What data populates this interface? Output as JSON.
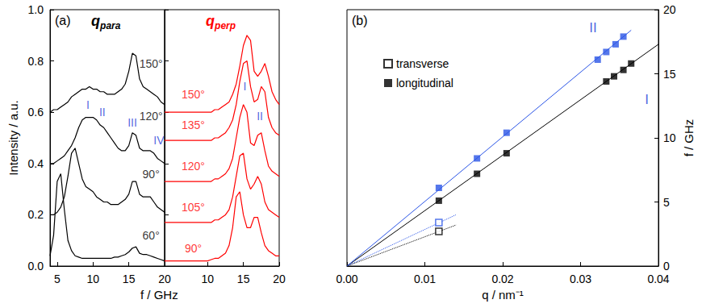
{
  "chart_data": [
    {
      "type": "line",
      "panel_label": "(a)",
      "title": {
        "text": "q",
        "subscript": "para"
      },
      "x_label": "f / GHz",
      "y_label": "Intensity / a.u.",
      "color": "#000000",
      "grid": false,
      "xlim": [
        4,
        20
      ],
      "xticks": [
        5,
        10,
        15,
        20
      ],
      "ylim": [
        0,
        1
      ],
      "yticks": [
        {
          "value": 0,
          "label": "0.0"
        },
        {
          "value": 0.2,
          "label": "0.2"
        },
        {
          "value": 0.4,
          "label": "0.4"
        },
        {
          "value": 0.6,
          "label": "0.6"
        },
        {
          "value": 0.8,
          "label": "0.8"
        },
        {
          "value": 1,
          "label": "1.0"
        }
      ],
      "x": [
        4,
        4.5,
        5,
        5.5,
        6,
        6.5,
        7,
        7.5,
        8,
        8.5,
        9,
        9.5,
        10,
        10.5,
        11,
        11.5,
        12,
        12.5,
        13,
        13.5,
        14,
        14.5,
        15,
        15.5,
        16,
        16.5,
        17,
        17.5,
        18,
        18.5,
        19,
        19.5,
        20
      ],
      "series": [
        {
          "values": [
            0.04,
            0.12,
            0.33,
            0.36,
            0.22,
            0.1,
            0.06,
            0.04,
            0.035,
            0.03,
            0.03,
            0.03,
            0.03,
            0.03,
            0.03,
            0.03,
            0.03,
            0.03,
            0.035,
            0.035,
            0.04,
            0.045,
            0.055,
            0.07,
            0.075,
            0.05,
            0.045,
            0.045,
            0.04,
            0.035,
            0.03,
            0.025,
            0.02
          ]
        },
        {
          "values": [
            0.2,
            0.2,
            0.21,
            0.23,
            0.27,
            0.35,
            0.44,
            0.46,
            0.4,
            0.34,
            0.31,
            0.3,
            0.29,
            0.27,
            0.26,
            0.25,
            0.25,
            0.24,
            0.24,
            0.24,
            0.25,
            0.26,
            0.28,
            0.33,
            0.33,
            0.28,
            0.27,
            0.27,
            0.27,
            0.25,
            0.23,
            0.22,
            0.21
          ]
        },
        {
          "values": [
            0.4,
            0.4,
            0.41,
            0.42,
            0.43,
            0.45,
            0.47,
            0.5,
            0.54,
            0.57,
            0.58,
            0.58,
            0.58,
            0.57,
            0.55,
            0.54,
            0.52,
            0.5,
            0.48,
            0.46,
            0.45,
            0.45,
            0.47,
            0.52,
            0.51,
            0.46,
            0.45,
            0.45,
            0.45,
            0.44,
            0.42,
            0.41,
            0.4
          ]
        },
        {
          "values": [
            0.6,
            0.61,
            0.61,
            0.62,
            0.63,
            0.64,
            0.66,
            0.67,
            0.68,
            0.69,
            0.69,
            0.7,
            0.69,
            0.69,
            0.68,
            0.68,
            0.67,
            0.67,
            0.67,
            0.68,
            0.69,
            0.71,
            0.76,
            0.83,
            0.82,
            0.73,
            0.7,
            0.69,
            0.68,
            0.67,
            0.66,
            0.64,
            0.63
          ]
        }
      ],
      "annotations": [
        {
          "text": "150°",
          "x": 18.1,
          "y": 0.79,
          "color": "#000000"
        },
        {
          "text": "120°",
          "x": 18.1,
          "y": 0.585,
          "color": "#000000"
        },
        {
          "text": "90°",
          "x": 18.1,
          "y": 0.36,
          "color": "#000000"
        },
        {
          "text": "60°",
          "x": 18.1,
          "y": 0.12,
          "color": "#000000"
        },
        {
          "text": "I",
          "x": 9.3,
          "y": 0.63,
          "color": "#1f3fd8"
        },
        {
          "text": "II",
          "x": 11.3,
          "y": 0.6,
          "color": "#1f3fd8"
        },
        {
          "text": "III",
          "x": 15.5,
          "y": 0.56,
          "color": "#1f3fd8"
        },
        {
          "text": "IV",
          "x": 19.2,
          "y": 0.49,
          "color": "#1f3fd8"
        }
      ]
    },
    {
      "type": "line",
      "title": {
        "text": "q",
        "subscript": "perp"
      },
      "color": "#ff0000",
      "grid": false,
      "tick_labels": "x",
      "xlim": [
        4,
        20
      ],
      "xticks": [
        10,
        15,
        20
      ],
      "ylim": [
        0,
        1
      ],
      "yticks": [
        {
          "value": 0,
          "label": "0.0"
        },
        {
          "value": 0.2,
          "label": "0.2"
        },
        {
          "value": 0.4,
          "label": "0.4"
        },
        {
          "value": 0.6,
          "label": "0.6"
        },
        {
          "value": 0.8,
          "label": "0.8"
        },
        {
          "value": 1,
          "label": "1.0"
        }
      ],
      "x": [
        4,
        4.5,
        5,
        5.5,
        6,
        6.5,
        7,
        7.5,
        8,
        8.5,
        9,
        9.5,
        10,
        10.5,
        11,
        11.5,
        12,
        12.5,
        13,
        13.5,
        14,
        14.5,
        15,
        15.5,
        16,
        16.5,
        17,
        17.5,
        18,
        18.5,
        19,
        19.5,
        20
      ],
      "series": [
        {
          "values": [
            0.02,
            0.02,
            0.02,
            0.02,
            0.02,
            0.02,
            0.02,
            0.02,
            0.02,
            0.02,
            0.02,
            0.02,
            0.02,
            0.025,
            0.03,
            0.03,
            0.04,
            0.05,
            0.08,
            0.15,
            0.27,
            0.29,
            0.2,
            0.15,
            0.15,
            0.19,
            0.19,
            0.13,
            0.08,
            0.06,
            0.05,
            0.04,
            0.04
          ]
        },
        {
          "values": [
            0.17,
            0.17,
            0.17,
            0.17,
            0.17,
            0.17,
            0.17,
            0.17,
            0.17,
            0.17,
            0.17,
            0.17,
            0.17,
            0.17,
            0.18,
            0.18,
            0.19,
            0.2,
            0.22,
            0.27,
            0.35,
            0.43,
            0.44,
            0.34,
            0.3,
            0.32,
            0.35,
            0.32,
            0.25,
            0.22,
            0.21,
            0.2,
            0.19
          ]
        },
        {
          "values": [
            0.33,
            0.33,
            0.33,
            0.33,
            0.33,
            0.33,
            0.33,
            0.33,
            0.33,
            0.33,
            0.33,
            0.33,
            0.33,
            0.33,
            0.34,
            0.34,
            0.35,
            0.36,
            0.38,
            0.42,
            0.5,
            0.58,
            0.63,
            0.6,
            0.48,
            0.47,
            0.51,
            0.52,
            0.45,
            0.39,
            0.37,
            0.36,
            0.35
          ]
        },
        {
          "values": [
            0.49,
            0.49,
            0.49,
            0.49,
            0.49,
            0.49,
            0.49,
            0.49,
            0.49,
            0.49,
            0.49,
            0.49,
            0.49,
            0.49,
            0.5,
            0.5,
            0.51,
            0.52,
            0.54,
            0.57,
            0.63,
            0.72,
            0.79,
            0.8,
            0.7,
            0.64,
            0.65,
            0.7,
            0.68,
            0.58,
            0.54,
            0.52,
            0.51
          ]
        },
        {
          "values": [
            0.6,
            0.6,
            0.6,
            0.6,
            0.6,
            0.6,
            0.6,
            0.6,
            0.6,
            0.6,
            0.6,
            0.6,
            0.6,
            0.6,
            0.61,
            0.61,
            0.62,
            0.63,
            0.64,
            0.67,
            0.71,
            0.78,
            0.86,
            0.9,
            0.88,
            0.76,
            0.74,
            0.76,
            0.79,
            0.74,
            0.68,
            0.65,
            0.63
          ]
        }
      ],
      "annotations": [
        {
          "text": "150°",
          "x": 8,
          "y": 0.67,
          "color": "#ff0000"
        },
        {
          "text": "135°",
          "x": 8,
          "y": 0.55,
          "color": "#ff0000"
        },
        {
          "text": "120°",
          "x": 8,
          "y": 0.39,
          "color": "#ff0000"
        },
        {
          "text": "105°",
          "x": 8,
          "y": 0.23,
          "color": "#ff0000"
        },
        {
          "text": "90°",
          "x": 8,
          "y": 0.07,
          "color": "#ff0000"
        },
        {
          "text": "I",
          "x": 15.2,
          "y": 0.7,
          "color": "#1f3fd8"
        },
        {
          "text": "II",
          "x": 17.3,
          "y": 0.585,
          "color": "#1f3fd8"
        }
      ]
    },
    {
      "type": "scatter",
      "panel_label": "(b)",
      "x_label": "q / nm⁻¹",
      "y_label": "f / GHz",
      "grid": false,
      "legend": "upper left",
      "xlim": [
        0,
        0.04
      ],
      "xticks": [
        {
          "value": 0,
          "label": "0.00"
        },
        {
          "value": 0.01,
          "label": "0.01"
        },
        {
          "value": 0.02,
          "label": "0.02"
        },
        {
          "value": 0.03,
          "label": "0.03"
        },
        {
          "value": 0.04,
          "label": "0.04"
        }
      ],
      "ylim": [
        0,
        20
      ],
      "yticks": [
        0,
        5,
        10,
        15,
        20
      ],
      "series": [
        {
          "name": "transverse",
          "marker": "open_square",
          "color": "#000000",
          "x": [
            0.0118
          ],
          "values": [
            2.7
          ]
        },
        {
          "name": "longitudinal",
          "marker": "square",
          "color": "#000000",
          "x": [
            0.0118,
            0.0167,
            0.0205,
            0.0333,
            0.0343,
            0.0355,
            0.0365
          ],
          "values": [
            5.1,
            7.2,
            8.8,
            14.4,
            14.8,
            15.3,
            15.8
          ]
        },
        {
          "name": "longitudinal",
          "marker": "square",
          "color": "#2b55e6",
          "x": [
            0.0118,
            0.0167,
            0.0205,
            0.0322,
            0.0333,
            0.0345,
            0.0355
          ],
          "values": [
            6.1,
            8.4,
            10.4,
            16.1,
            16.7,
            17.3,
            17.9
          ]
        },
        {
          "name": "transverse",
          "marker": "open_square",
          "color": "#2b55e6",
          "x": [
            0.0118
          ],
          "values": [
            3.4
          ]
        },
        {
          "type": "line",
          "line_style": "solid",
          "color": "#000000",
          "x": [
            0,
            0.04
          ],
          "values": [
            0,
            17.3
          ]
        },
        {
          "type": "line",
          "line_style": "solid",
          "color": "#2b55e6",
          "x": [
            0,
            0.0365
          ],
          "values": [
            0,
            18.4
          ]
        },
        {
          "type": "line",
          "line_style": "dotted",
          "color": "#000000",
          "x": [
            0,
            0.014
          ],
          "values": [
            0,
            3.2
          ]
        },
        {
          "type": "line",
          "line_style": "dotted",
          "color": "#2b55e6",
          "x": [
            0,
            0.014
          ],
          "values": [
            0,
            4.0
          ]
        }
      ],
      "annotations": [
        {
          "text": "I",
          "x": 0.0385,
          "y": 13.0,
          "color": "#1f3fd8"
        },
        {
          "text": "II",
          "x": 0.0316,
          "y": 18.6,
          "color": "#1f3fd8"
        }
      ]
    }
  ]
}
